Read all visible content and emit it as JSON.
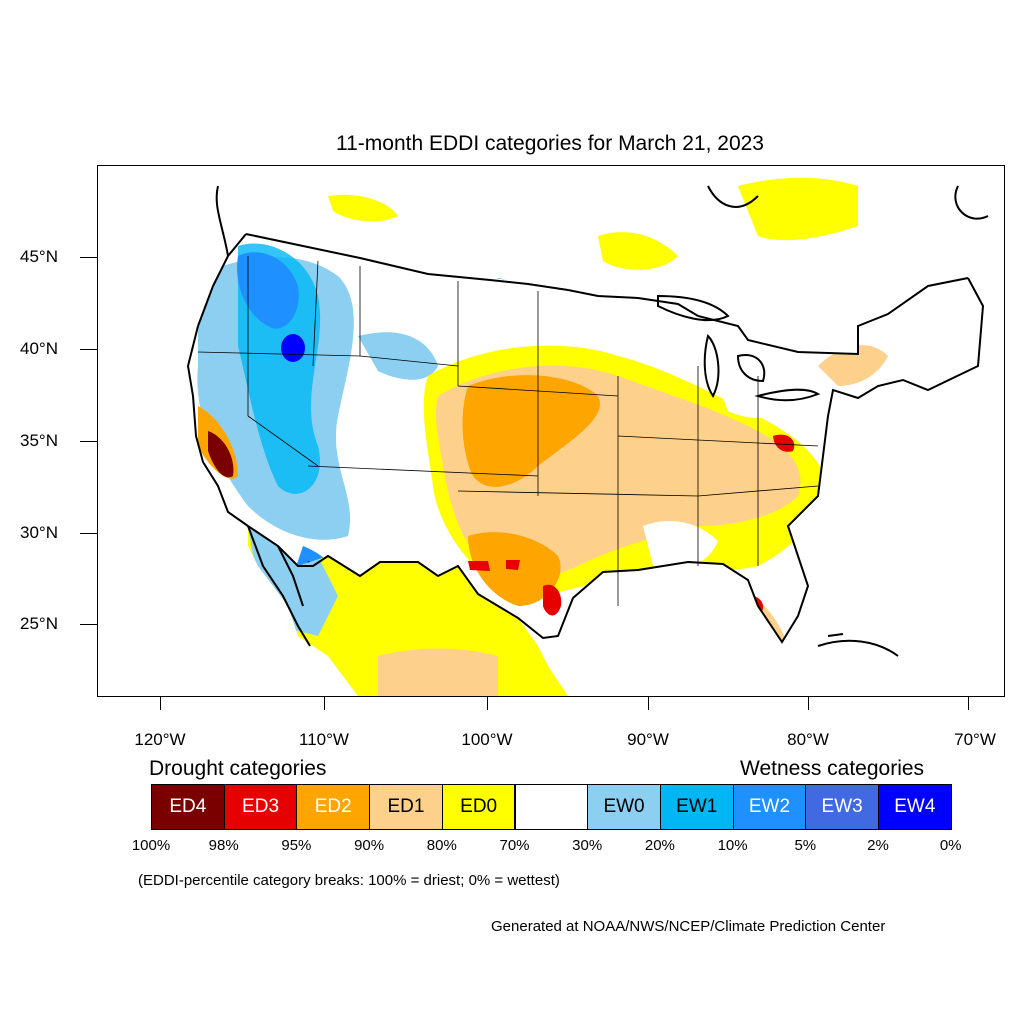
{
  "title": "11-month EDDI categories for March 21, 2023",
  "axes": {
    "lat_labels": [
      "45°N",
      "40°N",
      "35°N",
      "30°N",
      "25°N"
    ],
    "lon_labels": [
      "120°W",
      "110°W",
      "100°W",
      "90°W",
      "80°W",
      "70°W"
    ]
  },
  "legend": {
    "drought_heading": "Drought categories",
    "wetness_heading": "Wetness categories",
    "categories": [
      {
        "label": "ED4",
        "color": "#7a0000",
        "text_color": "#ffffff"
      },
      {
        "label": "ED3",
        "color": "#e60000",
        "text_color": "#ffffff"
      },
      {
        "label": "ED2",
        "color": "#ffa500",
        "text_color": "#ffffff"
      },
      {
        "label": "ED1",
        "color": "#fdd08b",
        "text_color": "#000000"
      },
      {
        "label": "ED0",
        "color": "#ffff00",
        "text_color": "#000000"
      },
      {
        "label": "",
        "color": "#ffffff",
        "text_color": "#000000"
      },
      {
        "label": "EW0",
        "color": "#8ccff0",
        "text_color": "#000000"
      },
      {
        "label": "EW1",
        "color": "#00b6f5",
        "text_color": "#000000"
      },
      {
        "label": "EW2",
        "color": "#1e90ff",
        "text_color": "#ffffff"
      },
      {
        "label": "EW3",
        "color": "#4169e1",
        "text_color": "#ffffff"
      },
      {
        "label": "EW4",
        "color": "#0000ff",
        "text_color": "#ffffff"
      }
    ],
    "percent_breaks": [
      "100%",
      "98%",
      "95%",
      "90%",
      "80%",
      "70%",
      "30%",
      "20%",
      "10%",
      "5%",
      "2%",
      "0%"
    ]
  },
  "note": "(EDDI-percentile category breaks: 100% = driest; 0% = wettest)",
  "credit": "Generated at NOAA/NWS/NCEP/Climate Prediction Center"
}
